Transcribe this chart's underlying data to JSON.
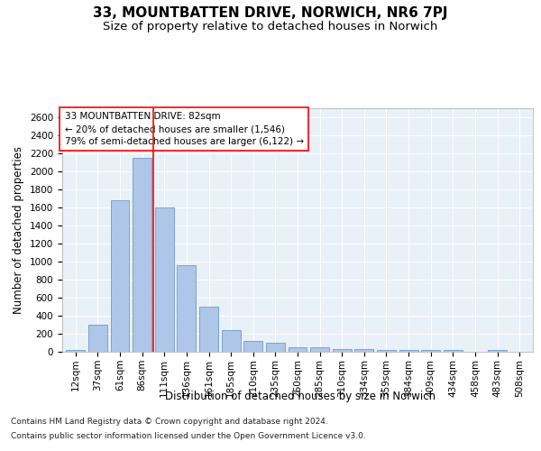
{
  "title": "33, MOUNTBATTEN DRIVE, NORWICH, NR6 7PJ",
  "subtitle": "Size of property relative to detached houses in Norwich",
  "xlabel": "Distribution of detached houses by size in Norwich",
  "ylabel": "Number of detached properties",
  "footnote1": "Contains HM Land Registry data © Crown copyright and database right 2024.",
  "footnote2": "Contains public sector information licensed under the Open Government Licence v3.0.",
  "annotation_line1": "33 MOUNTBATTEN DRIVE: 82sqm",
  "annotation_line2": "← 20% of detached houses are smaller (1,546)",
  "annotation_line3": "79% of semi-detached houses are larger (6,122) →",
  "bar_categories": [
    "12sqm",
    "37sqm",
    "61sqm",
    "86sqm",
    "111sqm",
    "136sqm",
    "161sqm",
    "185sqm",
    "210sqm",
    "235sqm",
    "260sqm",
    "285sqm",
    "310sqm",
    "334sqm",
    "359sqm",
    "384sqm",
    "409sqm",
    "434sqm",
    "458sqm",
    "483sqm",
    "508sqm"
  ],
  "bar_values": [
    25,
    300,
    1680,
    2150,
    1600,
    960,
    505,
    240,
    120,
    100,
    50,
    50,
    30,
    35,
    20,
    25,
    20,
    20,
    5,
    25,
    5
  ],
  "bar_color": "#aec6e8",
  "bar_edge_color": "#5a8fc4",
  "vline_x": 3.5,
  "vline_color": "red",
  "ylim": [
    0,
    2700
  ],
  "yticks": [
    0,
    200,
    400,
    600,
    800,
    1000,
    1200,
    1400,
    1600,
    1800,
    2000,
    2200,
    2400,
    2600
  ],
  "bg_color": "#e8f0f8",
  "grid_color": "white",
  "title_fontsize": 11,
  "subtitle_fontsize": 9.5,
  "axis_label_fontsize": 8.5,
  "tick_fontsize": 7.5,
  "annotation_fontsize": 7.5,
  "footnote_fontsize": 6.5
}
